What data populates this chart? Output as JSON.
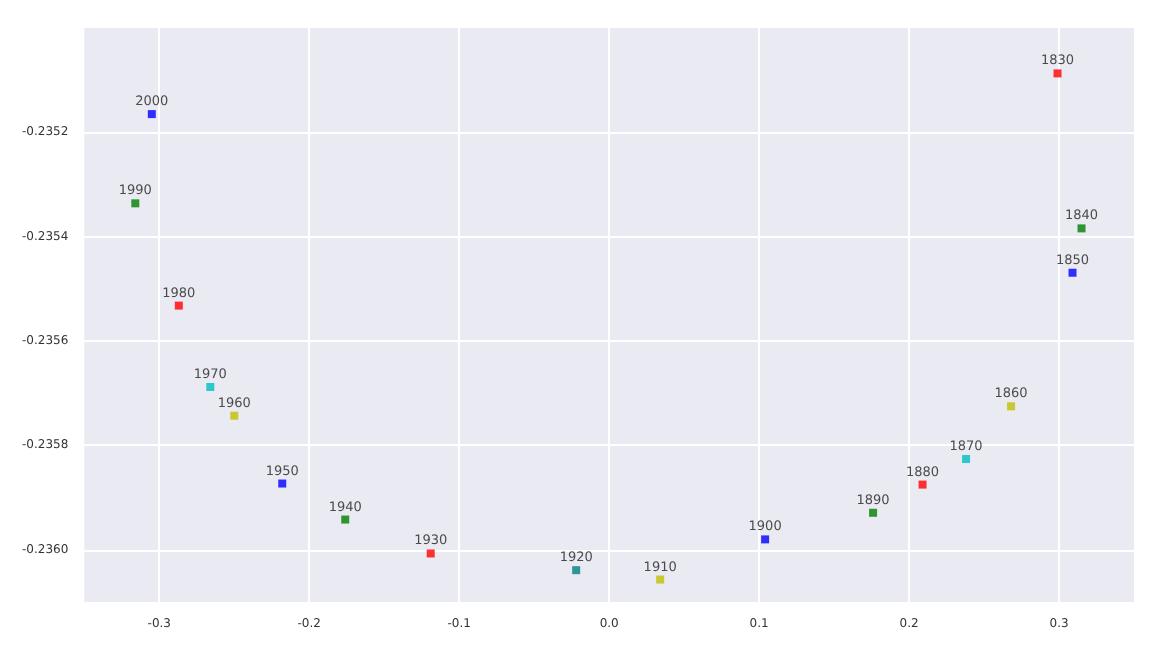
{
  "chart_data": {
    "type": "scatter",
    "marker": "square",
    "grid": true,
    "xlim": [
      -0.35,
      0.35
    ],
    "ylim": [
      -0.2361,
      -0.235
    ],
    "xticks": [
      -0.3,
      -0.2,
      -0.1,
      {
        "value": 0,
        "label": "0.0"
      },
      0.1,
      0.2,
      0.3
    ],
    "yticks": [
      {
        "value": -0.236,
        "label": "-0.2360"
      },
      -0.2358,
      -0.2356,
      -0.2354,
      -0.2352
    ],
    "series": [
      {
        "name": "2000",
        "color": "#0000ff",
        "x": [
          -0.305
        ],
        "values": [
          -0.235165
        ]
      },
      {
        "name": "1990",
        "color": "#008000",
        "x": [
          -0.316
        ],
        "values": [
          -0.235336
        ]
      },
      {
        "name": "1980",
        "color": "#ff0000",
        "x": [
          -0.287
        ],
        "values": [
          -0.235532
        ]
      },
      {
        "name": "1970",
        "color": "#00bfbf",
        "x": [
          -0.266
        ],
        "values": [
          -0.235688
        ]
      },
      {
        "name": "1960",
        "color": "#bfbf00",
        "x": [
          -0.25
        ],
        "values": [
          -0.235743
        ]
      },
      {
        "name": "1950",
        "color": "#0000ff",
        "x": [
          -0.218
        ],
        "values": [
          -0.235873
        ]
      },
      {
        "name": "1940",
        "color": "#008000",
        "x": [
          -0.176
        ],
        "values": [
          -0.235942
        ]
      },
      {
        "name": "1930",
        "color": "#ff0000",
        "x": [
          -0.119
        ],
        "values": [
          -0.236007
        ]
      },
      {
        "name": "1920",
        "color": "#008080",
        "x": [
          -0.022
        ],
        "values": [
          -0.236039
        ]
      },
      {
        "name": "1910",
        "color": "#bfbf00",
        "x": [
          0.034
        ],
        "values": [
          -0.236057
        ]
      },
      {
        "name": "1900",
        "color": "#0000ff",
        "x": [
          0.104
        ],
        "values": [
          -0.23598
        ]
      },
      {
        "name": "1890",
        "color": "#008000",
        "x": [
          0.176
        ],
        "values": [
          -0.235929
        ]
      },
      {
        "name": "1880",
        "color": "#ff0000",
        "x": [
          0.209
        ],
        "values": [
          -0.235875
        ]
      },
      {
        "name": "1870",
        "color": "#00bfbf",
        "x": [
          0.238
        ],
        "values": [
          -0.235826
        ]
      },
      {
        "name": "1860",
        "color": "#bfbf00",
        "x": [
          0.268
        ],
        "values": [
          -0.235725
        ]
      },
      {
        "name": "1850",
        "color": "#0000ff",
        "x": [
          0.309
        ],
        "values": [
          -0.235469
        ]
      },
      {
        "name": "1840",
        "color": "#008000",
        "x": [
          0.315
        ],
        "values": [
          -0.235384
        ]
      },
      {
        "name": "1830",
        "color": "#ff0000",
        "x": [
          0.299
        ],
        "values": [
          -0.235087
        ]
      }
    ]
  }
}
